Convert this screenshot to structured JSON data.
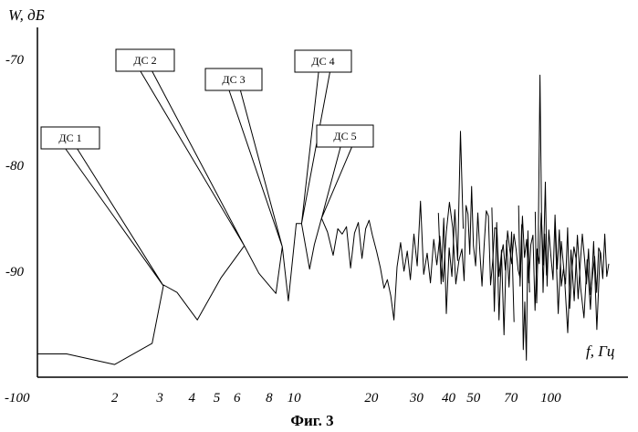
{
  "chart_data": {
    "type": "line",
    "caption": "Фиг. 3",
    "ylabel": "W, дБ",
    "xlabel": "f, Гц",
    "xscale": "log",
    "xlim": [
      1.0,
      200
    ],
    "ylim": [
      -100,
      -67
    ],
    "y_ticks": [
      "-70",
      "-80",
      "-90",
      "-100"
    ],
    "x_ticks": [
      "2",
      "3",
      "4",
      "5",
      "6",
      "8",
      "10",
      "20",
      "30",
      "40",
      "50",
      "70",
      "100"
    ],
    "grid": false,
    "callouts": [
      {
        "label": "ДС 1",
        "f": 3.1,
        "w": -91.4
      },
      {
        "label": "ДС 2",
        "f": 6.4,
        "w": -87.6
      },
      {
        "label": "ДС 3",
        "f": 9.0,
        "w": -87.7
      },
      {
        "label": "ДС 4",
        "f": 10.7,
        "w": -85.5
      },
      {
        "label": "ДС 5",
        "f": 12.8,
        "w": -85.0
      }
    ],
    "series": [
      {
        "x": [
          1.0,
          1.3,
          2.0,
          2.8,
          3.1,
          3.5,
          4.2,
          5.2,
          6.4,
          7.3,
          8.5,
          9.0,
          9.5,
          10.2,
          10.7,
          11.5,
          12.0,
          12.8,
          13.5,
          14.2,
          14.8,
          15.4,
          16.0,
          16.6,
          17.2,
          17.8,
          18.4,
          19.0,
          19.6,
          20.2,
          21.0,
          21.7,
          22.4,
          23.1,
          23.8,
          24.5,
          25.2,
          26.0,
          26.8,
          27.6,
          28.4,
          29.3,
          30.2,
          31.1,
          32.0,
          33.0,
          34.0,
          35.0,
          36.0,
          37.0,
          38.1,
          39.2,
          40.3,
          41.5,
          42.7,
          43.9,
          45.1,
          46.0,
          46.8,
          47.6,
          48.4,
          49.2,
          50.0,
          51.0,
          52.0,
          53.0,
          54.0,
          55.0,
          56.1,
          57.2,
          58.3,
          59.4,
          60.5,
          61.7,
          62.9,
          64.1,
          65.3,
          66.6,
          67.9,
          69.2,
          70.5,
          71.9,
          73.3,
          74.7,
          76.1,
          77.6,
          79.1,
          80.6,
          82.1,
          83.7,
          85.3,
          86.9,
          88.5,
          90.2,
          91.9,
          93.6,
          95.3,
          96.8,
          98.3,
          100.2,
          102.1,
          104.0,
          106.0,
          108.0,
          110.0,
          112.1,
          114.2,
          116.4,
          118.6,
          120.9,
          123.2,
          125.5,
          127.9,
          130.3,
          132.8,
          135.3,
          137.8,
          140.4,
          143.0,
          145.6,
          148.3,
          151.0,
          153.8,
          156.6,
          159.5,
          162.4,
          165.4,
          168.4
        ],
        "y": [
          -97.8,
          -97.8,
          -98.8,
          -96.8,
          -91.3,
          -92.0,
          -94.6,
          -90.6,
          -87.6,
          -90.2,
          -92.1,
          -87.7,
          -92.8,
          -85.5,
          -85.5,
          -89.8,
          -87.5,
          -85.0,
          -86.3,
          -88.5,
          -86.0,
          -86.5,
          -85.8,
          -89.7,
          -86.4,
          -85.4,
          -88.8,
          -86.0,
          -85.2,
          -86.6,
          -88.2,
          -89.7,
          -91.6,
          -90.8,
          -92.3,
          -94.6,
          -89.6,
          -87.3,
          -90.0,
          -88.1,
          -90.8,
          -86.5,
          -89.5,
          -83.4,
          -90.3,
          -88.3,
          -91.1,
          -87.0,
          -89.4,
          -86.7,
          -91.0,
          -86.3,
          -83.5,
          -85.9,
          -91.2,
          -89.0,
          -87.9,
          -90.9,
          -83.8,
          -84.6,
          -88.4,
          -82.0,
          -87.6,
          -89.5,
          -84.5,
          -88.3,
          -91.4,
          -87.6,
          -84.3,
          -84.8,
          -91.3,
          -89.1,
          -85.9,
          -86.0,
          -90.5,
          -88.6,
          -87.5,
          -89.9,
          -86.2,
          -87.9,
          -89.3,
          -86.5,
          -87.9,
          -89.9,
          -90.7,
          -84.8,
          -88.7,
          -87.0,
          -91.1,
          -87.5,
          -86.6,
          -93.7,
          -87.9,
          -89.3,
          -84.5,
          -89.4,
          -81.6,
          -91.4,
          -86.1,
          -88.6,
          -90.8,
          -84.7,
          -89.8,
          -86.1,
          -91.4,
          -89.8,
          -91.2,
          -85.9,
          -93.5,
          -90.0,
          -87.7,
          -88.8,
          -92.6,
          -89.4,
          -86.5,
          -88.7,
          -91.2,
          -87.9,
          -92.2,
          -90.4,
          -88.6,
          -92.0,
          -87.8,
          -88.3,
          -90.7,
          -86.5,
          -90.5,
          -89.3
        ]
      }
    ],
    "spikes": [
      {
        "x": [
          36.5,
          37.4,
          38.3,
          39.2,
          40.2,
          41.2,
          42.3,
          43.4,
          44.5,
          45.6
        ],
        "y": [
          -84.5,
          -91.2,
          -85.0,
          -94.0,
          -87.8,
          -90.5,
          -84.2,
          -89.0,
          -76.8,
          -86.0
        ]
      },
      {
        "x": [
          59.0,
          60.3,
          61.6,
          62.9,
          64.3,
          65.8,
          67.3,
          68.8,
          70.4,
          72.0
        ],
        "y": [
          -84.0,
          -93.8,
          -85.4,
          -94.6,
          -88.0,
          -96.0,
          -87.1,
          -91.5,
          -86.3,
          -94.8
        ]
      },
      {
        "x": [
          75.0,
          76.0,
          77.1,
          78.2,
          79.3,
          80.4,
          81.5,
          82.7
        ],
        "y": [
          -83.8,
          -91.4,
          -85.6,
          -97.4,
          -92.9,
          -98.4,
          -86.2,
          -92.0
        ]
      },
      {
        "x": [
          87.0,
          88.2,
          89.5,
          90.8,
          92.1,
          93.4,
          94.8,
          96.3
        ],
        "y": [
          -84.4,
          -93.0,
          -86.6,
          -71.5,
          -84.6,
          -92.0,
          -86.5,
          -90.4
        ]
      },
      {
        "x": [
          104.0,
          107.0,
          110.0,
          113.2,
          116.5,
          120.0,
          123.5,
          127.1,
          130.9,
          134.8,
          138.7,
          142.8,
          147.0,
          151.3,
          155.8
        ],
        "y": [
          -85.8,
          -94.0,
          -87.2,
          -90.6,
          -95.8,
          -88.0,
          -92.8,
          -86.6,
          -91.6,
          -94.4,
          -88.9,
          -93.6,
          -87.2,
          -95.5,
          -88.2
        ]
      }
    ]
  }
}
